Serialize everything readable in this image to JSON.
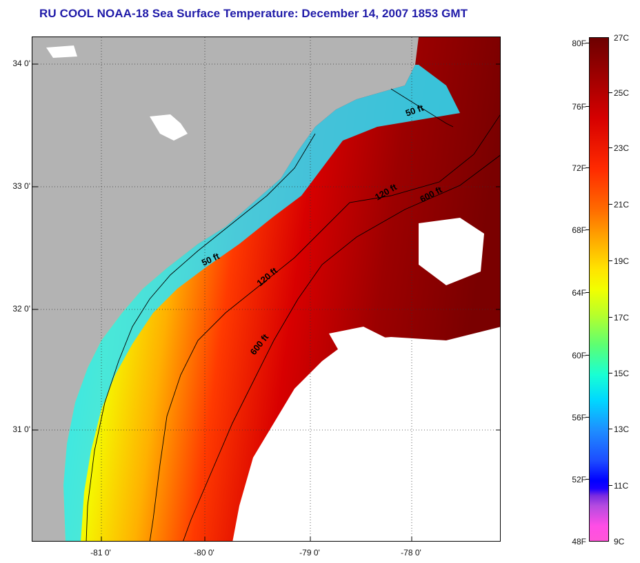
{
  "title": "RU COOL  NOAA-18  Sea Surface Temperature:  December 14, 2007 1853 GMT",
  "map": {
    "latitude_labels": [
      "34 0'",
      "33 0'",
      "32 0'",
      "31 0'"
    ],
    "longitude_labels": [
      "-81 0'",
      "-80 0'",
      "-79 0'",
      "-78 0'"
    ],
    "contour_labels": [
      "50 ft",
      "50 ft",
      "120 ft",
      "120 ft",
      "600 ft",
      "600 ft"
    ],
    "colors": {
      "land": "#b3b3b3",
      "cloud": "#ffffff",
      "warm": "#8b0000",
      "mid": "#ff2a00",
      "cool": "#ffe600",
      "cold": "#20e3ff"
    }
  },
  "colorbar": {
    "fahrenheit": [
      "80F",
      "76F",
      "72F",
      "68F",
      "64F",
      "60F",
      "56F",
      "52F",
      "48F"
    ],
    "celsius": [
      "27C",
      "25C",
      "23C",
      "21C",
      "19C",
      "17C",
      "15C",
      "13C",
      "11C",
      "9C"
    ]
  }
}
